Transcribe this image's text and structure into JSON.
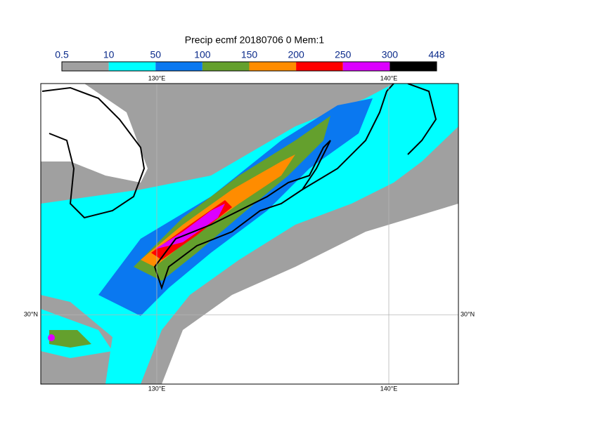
{
  "title": "Precip ecmf 20180706 0 Mem:1",
  "colorbar": {
    "levels": [
      0.5,
      10,
      50,
      100,
      150,
      200,
      250,
      300,
      448
    ],
    "colors": [
      "#a0a0a0",
      "#00ffff",
      "#0a78f0",
      "#64a02d",
      "#ff8c00",
      "#ff0000",
      "#dc00ff",
      "#000000"
    ]
  },
  "map": {
    "xlim": [
      125,
      143
    ],
    "ylim": [
      27,
      40
    ],
    "xticks": [
      {
        "value": 130,
        "label": "130°E"
      },
      {
        "value": 140,
        "label": "140°E"
      }
    ],
    "yticks": [
      {
        "value": 30,
        "label": "30°N"
      }
    ]
  }
}
